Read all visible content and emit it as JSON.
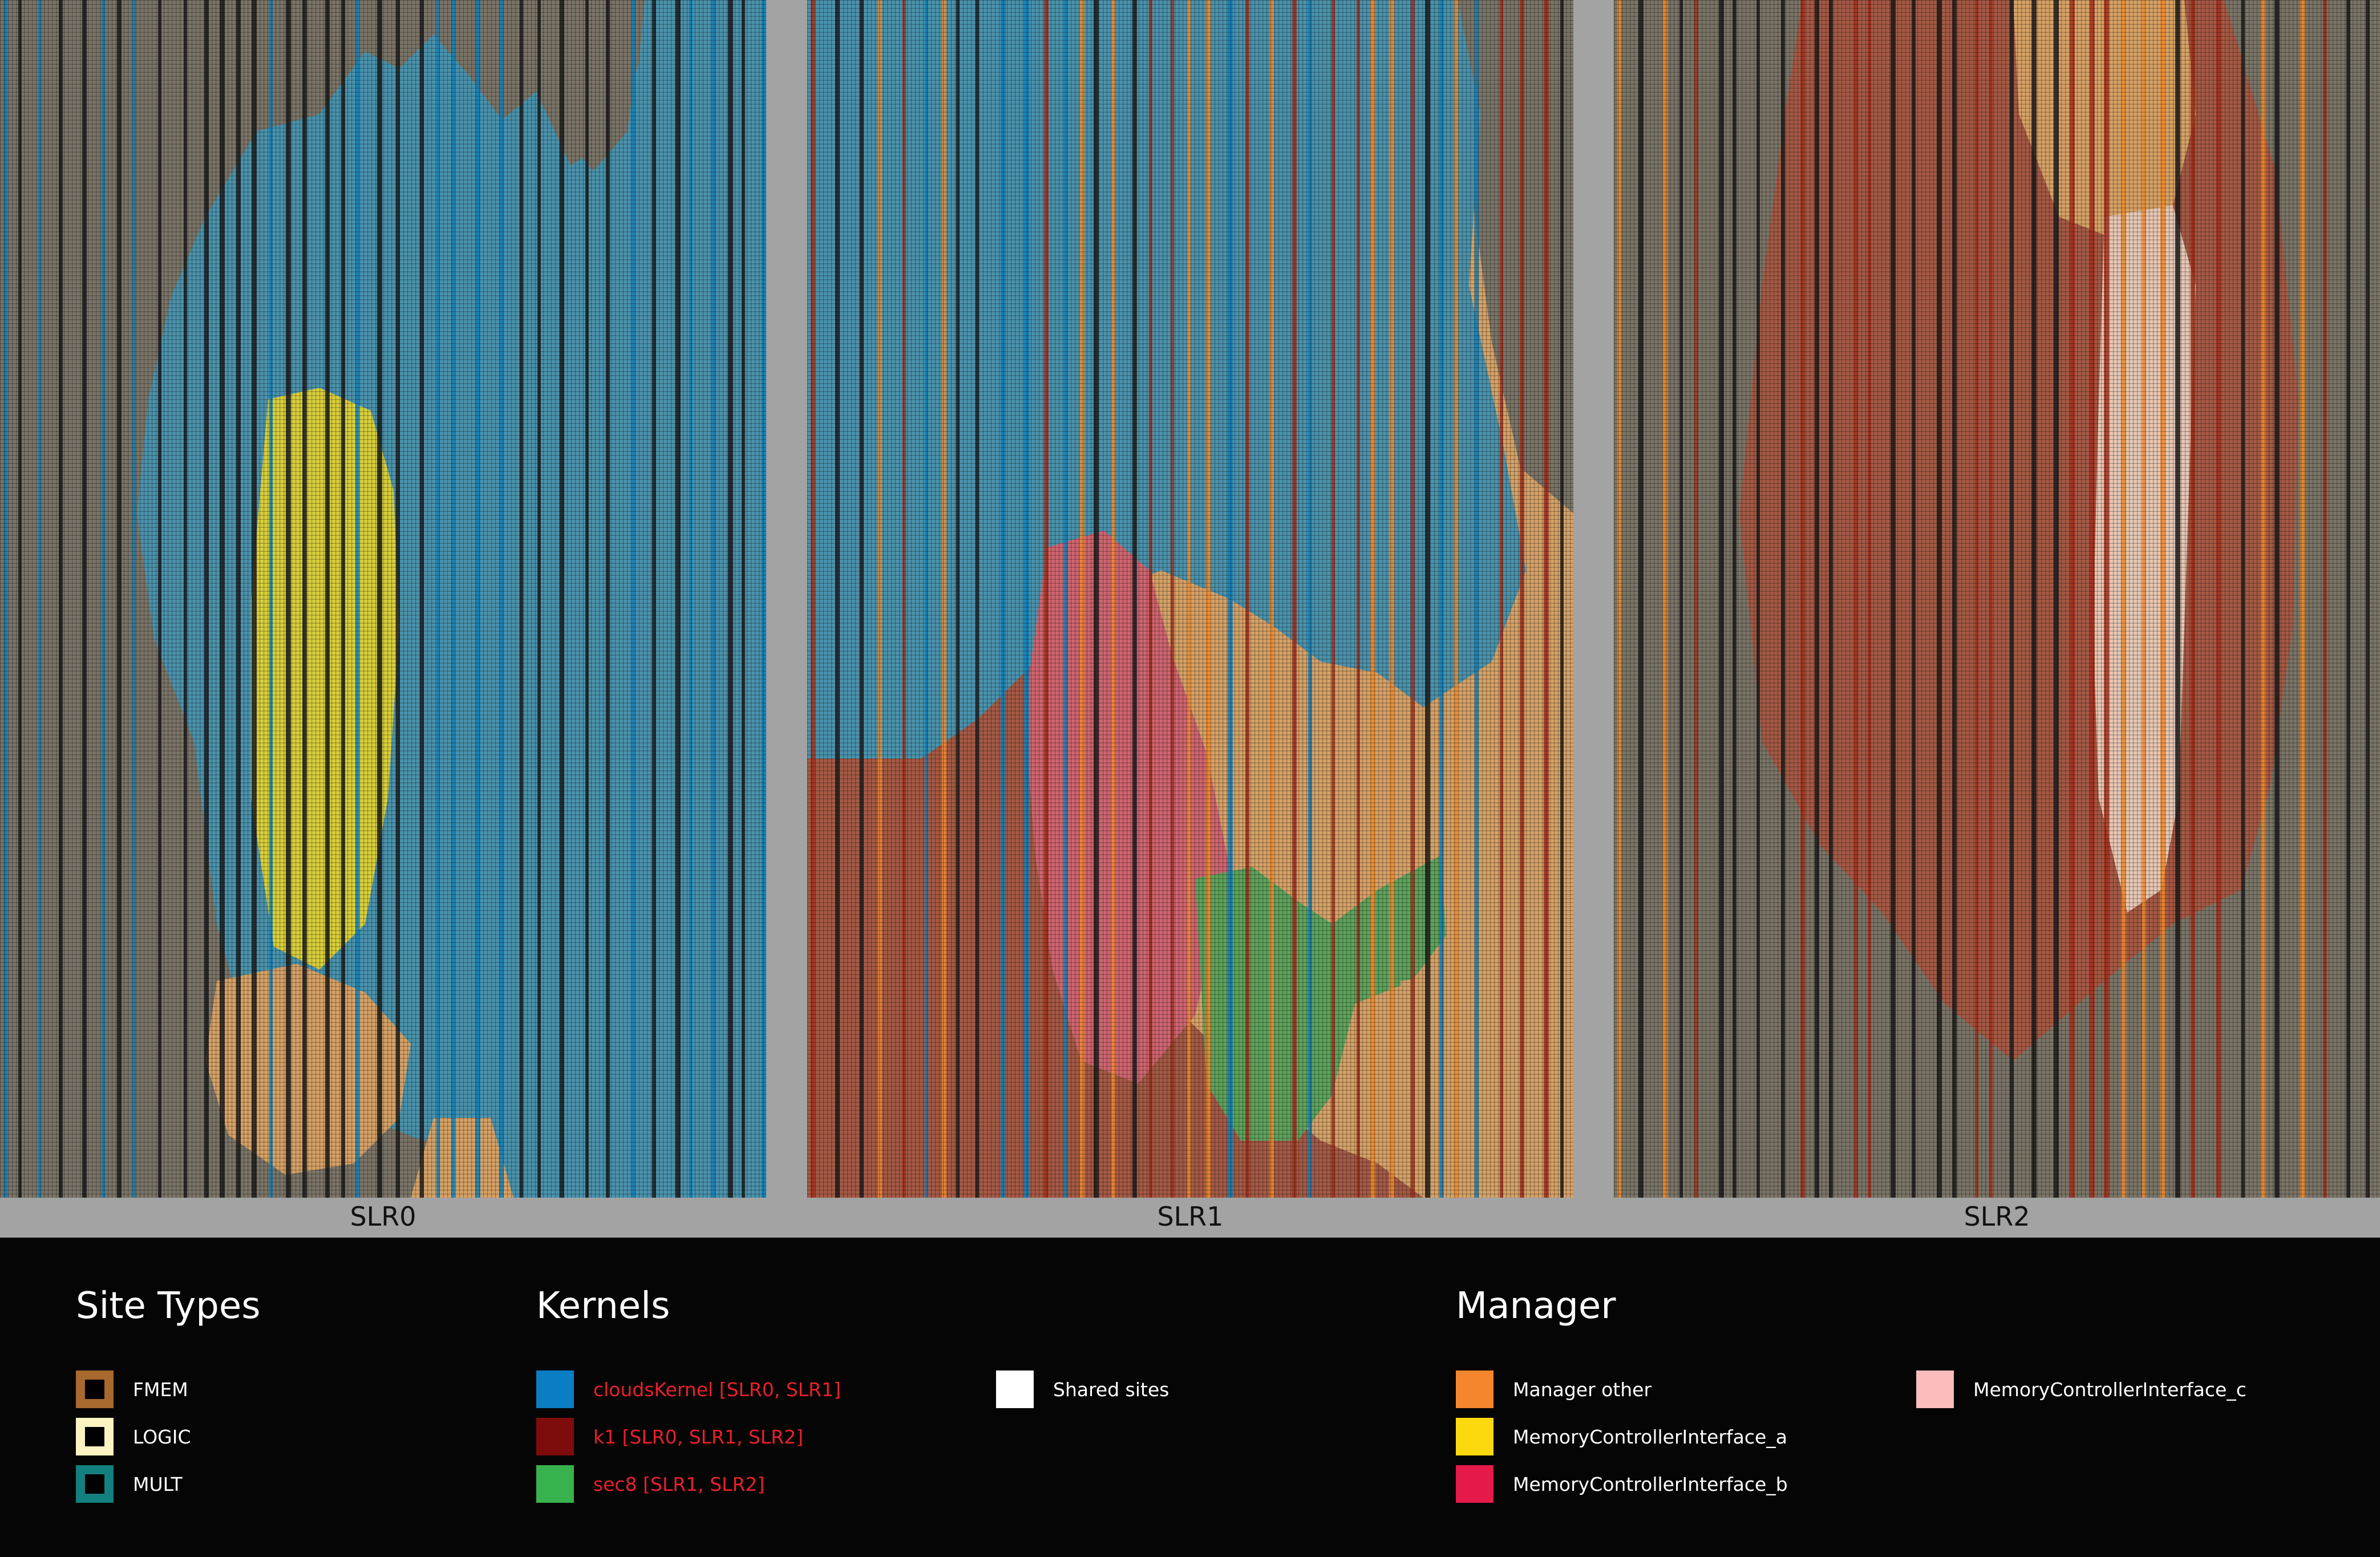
{
  "panels": [
    {
      "id": "slr0",
      "label": "SLR0"
    },
    {
      "id": "slr1",
      "label": "SLR1"
    },
    {
      "id": "slr2",
      "label": "SLR2"
    }
  ],
  "legend": {
    "site_types": {
      "title": "Site Types",
      "items": [
        {
          "label": "FMEM",
          "color": "#a8692f"
        },
        {
          "label": "LOGIC",
          "color": "#fcf3c2"
        },
        {
          "label": "MULT",
          "color": "#137f80"
        }
      ]
    },
    "kernels": {
      "title": "Kernels",
      "items": [
        {
          "label": "cloudsKernel [SLR0, SLR1]",
          "color": "#0a7ec4"
        },
        {
          "label": "k1 [SLR0, SLR1, SLR2]",
          "color": "#7f0c0c"
        },
        {
          "label": "sec8 [SLR1, SLR2]",
          "color": "#37b24d"
        }
      ],
      "shared": {
        "label": "Shared sites",
        "color": "#ffffff"
      }
    },
    "manager": {
      "title": "Manager",
      "items": [
        {
          "label": "Manager other",
          "color": "#f5862e"
        },
        {
          "label": "MemoryControllerInterface_a",
          "color": "#fcd80f"
        },
        {
          "label": "MemoryControllerInterface_b",
          "color": "#e6194b"
        },
        {
          "label": "MemoryControllerInterface_c",
          "color": "#fbbcbc"
        }
      ]
    }
  },
  "colors": {
    "background": "#7b7568",
    "cloudsKernel_region": "#4b93ad",
    "k1_region": "#a55a45",
    "manager_region": "#d6a267",
    "mcb_region": "#cf6570",
    "mcc_region": "#e6c7b4",
    "mca_region": "#d8cf3c",
    "sec8_region": "#5fa35c",
    "column_dark": "#1c1c1c",
    "column_blue": "#117fb8",
    "column_red": "#a0301d",
    "column_orange": "#ef8a2c"
  }
}
